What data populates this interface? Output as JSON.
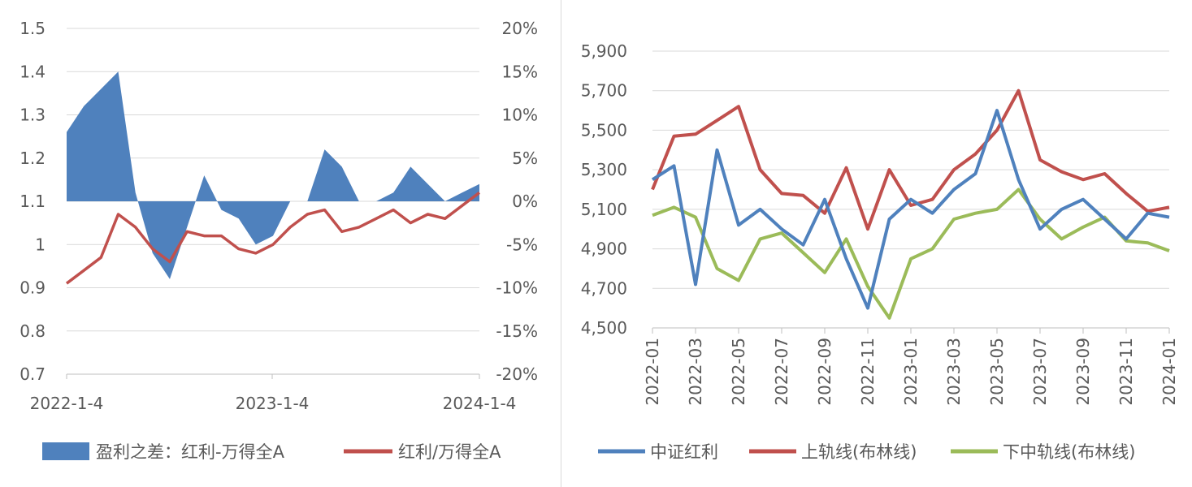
{
  "chart_data": [
    {
      "type": "area",
      "title": "",
      "x_ticks": [
        "2022-1-4",
        "2023-1-4",
        "2024-1-4"
      ],
      "y_left": {
        "ticks": [
          "0.7",
          "0.8",
          "0.9",
          "1",
          "1.1",
          "1.2",
          "1.3",
          "1.4",
          "1.5"
        ],
        "range": [
          0.7,
          1.5
        ]
      },
      "y_right": {
        "ticks": [
          "-20%",
          "-15%",
          "-10%",
          "-5%",
          "0%",
          "5%",
          "10%",
          "15%",
          "20%"
        ],
        "range": [
          -20,
          20
        ],
        "unit": "%"
      },
      "grid": true,
      "legend_position": "bottom",
      "series": [
        {
          "name": "盈利之差：红利-万得全A",
          "axis": "right",
          "type": "area",
          "color": "#4f81bd",
          "x": [
            "2022-01",
            "2022-02",
            "2022-03",
            "2022-04",
            "2022-05",
            "2022-06",
            "2022-07",
            "2022-08",
            "2022-09",
            "2022-10",
            "2022-11",
            "2022-12",
            "2023-01",
            "2023-02",
            "2023-03",
            "2023-04",
            "2023-05",
            "2023-06",
            "2023-07",
            "2023-08",
            "2023-09",
            "2023-10",
            "2023-11",
            "2023-12",
            "2024-01"
          ],
          "values": [
            8,
            11,
            13,
            15,
            1,
            -6,
            -9,
            -3,
            3,
            -1,
            -2,
            -5,
            -4,
            0,
            0,
            6,
            4,
            0,
            0,
            1,
            4,
            2,
            0,
            1,
            2
          ]
        },
        {
          "name": "红利/万得全A",
          "axis": "left",
          "type": "line",
          "color": "#c0504d",
          "x": [
            "2022-01",
            "2022-02",
            "2022-03",
            "2022-04",
            "2022-05",
            "2022-06",
            "2022-07",
            "2022-08",
            "2022-09",
            "2022-10",
            "2022-11",
            "2022-12",
            "2023-01",
            "2023-02",
            "2023-03",
            "2023-04",
            "2023-05",
            "2023-06",
            "2023-07",
            "2023-08",
            "2023-09",
            "2023-10",
            "2023-11",
            "2023-12",
            "2024-01"
          ],
          "values": [
            0.91,
            0.94,
            0.97,
            1.07,
            1.04,
            0.99,
            0.96,
            1.03,
            1.02,
            1.02,
            0.99,
            0.98,
            1.0,
            1.04,
            1.07,
            1.08,
            1.03,
            1.04,
            1.06,
            1.08,
            1.05,
            1.07,
            1.06,
            1.09,
            1.12
          ]
        }
      ]
    },
    {
      "type": "line",
      "title": "",
      "x_ticks": [
        "2022-01",
        "2022-03",
        "2022-05",
        "2022-07",
        "2022-09",
        "2022-11",
        "2023-01",
        "2023-03",
        "2023-05",
        "2023-07",
        "2023-09",
        "2023-11",
        "2024-01"
      ],
      "y": {
        "ticks": [
          "4,500",
          "4,700",
          "4,900",
          "5,100",
          "5,300",
          "5,500",
          "5,700",
          "5,900"
        ],
        "range": [
          4500,
          5900
        ]
      },
      "grid": true,
      "legend_position": "bottom",
      "series": [
        {
          "name": "中证红利",
          "color": "#4f81bd",
          "x": [
            "2022-01",
            "2022-02",
            "2022-03",
            "2022-04",
            "2022-05",
            "2022-06",
            "2022-07",
            "2022-08",
            "2022-09",
            "2022-10",
            "2022-11",
            "2022-12",
            "2023-01",
            "2023-02",
            "2023-03",
            "2023-04",
            "2023-05",
            "2023-06",
            "2023-07",
            "2023-08",
            "2023-09",
            "2023-10",
            "2023-11",
            "2023-12",
            "2024-01"
          ],
          "values": [
            5250,
            5320,
            4720,
            5400,
            5020,
            5100,
            5000,
            4920,
            5150,
            4850,
            4600,
            5050,
            5150,
            5080,
            5200,
            5280,
            5600,
            5250,
            5000,
            5100,
            5150,
            5050,
            4950,
            5080,
            5060
          ]
        },
        {
          "name": "上轨线(布林线)",
          "color": "#c0504d",
          "x": [
            "2022-01",
            "2022-02",
            "2022-03",
            "2022-04",
            "2022-05",
            "2022-06",
            "2022-07",
            "2022-08",
            "2022-09",
            "2022-10",
            "2022-11",
            "2022-12",
            "2023-01",
            "2023-02",
            "2023-03",
            "2023-04",
            "2023-05",
            "2023-06",
            "2023-07",
            "2023-08",
            "2023-09",
            "2023-10",
            "2023-11",
            "2023-12",
            "2024-01"
          ],
          "values": [
            5200,
            5470,
            5480,
            5550,
            5620,
            5300,
            5180,
            5170,
            5080,
            5310,
            5000,
            5300,
            5120,
            5150,
            5300,
            5380,
            5500,
            5700,
            5350,
            5290,
            5250,
            5280,
            5180,
            5090,
            5110
          ]
        },
        {
          "name": "下中轨线(布林线)",
          "color": "#9bbb59",
          "x": [
            "2022-01",
            "2022-02",
            "2022-03",
            "2022-04",
            "2022-05",
            "2022-06",
            "2022-07",
            "2022-08",
            "2022-09",
            "2022-10",
            "2022-11",
            "2022-12",
            "2023-01",
            "2023-02",
            "2023-03",
            "2023-04",
            "2023-05",
            "2023-06",
            "2023-07",
            "2023-08",
            "2023-09",
            "2023-10",
            "2023-11",
            "2023-12",
            "2024-01"
          ],
          "values": [
            5070,
            5110,
            5060,
            4800,
            4740,
            4950,
            4980,
            4880,
            4780,
            4950,
            4710,
            4550,
            4850,
            4900,
            5050,
            5080,
            5100,
            5200,
            5050,
            4950,
            5010,
            5060,
            4940,
            4930,
            4890
          ]
        }
      ]
    }
  ]
}
